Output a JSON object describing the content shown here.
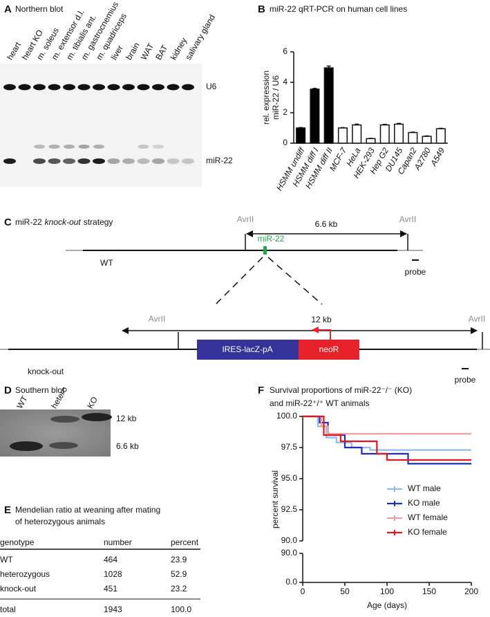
{
  "panel_labels": [
    "A",
    "B",
    "C",
    "D",
    "E",
    "F"
  ],
  "northern_blot": {
    "title": "Northern blot",
    "lanes": [
      "heart",
      "heart KO",
      "m. soleus",
      "m. extensor d.l.",
      "m. tibialis ant.",
      "m. gastrocnemius",
      "m. quadriceps",
      "liver",
      "brain",
      "WAT",
      "BAT",
      "kidney",
      "salivary gland"
    ],
    "bands": [
      "U6",
      "miR-22"
    ]
  },
  "chart_data": [
    {
      "type": "bar",
      "title": "miR-22 qRT-PCR on human cell lines",
      "y_label": [
        "rel. expression",
        "miR-22 / U6"
      ],
      "categories": [
        "HSMM undiff",
        "HSMM diff I",
        "HSMM diff II",
        "MCF-7",
        "HeLa",
        "HEK-293",
        "Hep G2",
        "DU145",
        "Capan2",
        "A2780",
        "A549"
      ],
      "values": [
        1.0,
        3.55,
        4.95,
        1.0,
        1.2,
        0.3,
        1.2,
        1.25,
        0.7,
        0.45,
        0.95
      ],
      "errors": [
        0.03,
        0.05,
        0.12,
        0.02,
        0.05,
        0.02,
        0.04,
        0.05,
        0.03,
        0.03,
        0.03
      ],
      "colors": [
        "#000000",
        "#000000",
        "#000000",
        "#ffffff",
        "#ffffff",
        "#ffffff",
        "#ffffff",
        "#ffffff",
        "#ffffff",
        "#ffffff",
        "#ffffff"
      ],
      "ylim": [
        0,
        6
      ],
      "yticks": [
        0,
        2,
        4,
        6
      ]
    },
    {
      "type": "line",
      "title": [
        "Survival proportions of miR-22⁻/⁻ (KO)",
        "and miR-22⁺/⁺ WT animals"
      ],
      "x_label": "Age (days)",
      "y_label": "percent survival",
      "xlim": [
        0,
        200
      ],
      "xticks": [
        0,
        50,
        100,
        150,
        200
      ],
      "ylim": [
        90,
        100
      ],
      "yticks": [
        {
          "value": 90,
          "label": "90.0"
        },
        {
          "value": 92.5,
          "label": "92.5"
        },
        {
          "value": 95,
          "label": "95.0"
        },
        {
          "value": 97.5,
          "label": "97.5"
        },
        {
          "value": 100,
          "label": "100.0"
        }
      ],
      "ylim_lower": [
        0,
        90
      ],
      "yticks_lower": [
        {
          "value": 0,
          "label": "0.0"
        },
        {
          "value": 90,
          "label": "90.0"
        }
      ],
      "legend": "lower right",
      "series": [
        {
          "name": "WT male",
          "color": "#8fbce6",
          "x": [
            0,
            18,
            18,
            28,
            28,
            40,
            40,
            58,
            58,
            80,
            80,
            200
          ],
          "values": [
            100,
            100,
            99.2,
            99.2,
            98.3,
            98.3,
            97.9,
            97.9,
            97.5,
            97.5,
            97.3,
            97.3
          ]
        },
        {
          "name": "KO male",
          "color": "#1a2ec0",
          "x": [
            0,
            20,
            20,
            30,
            30,
            50,
            50,
            70,
            70,
            125,
            125,
            200
          ],
          "values": [
            100,
            100,
            99.5,
            99.5,
            98.5,
            98.5,
            97.5,
            97.5,
            97.0,
            97.0,
            96.2,
            96.2
          ]
        },
        {
          "name": "WT female",
          "color": "#f29b9b",
          "x": [
            0,
            22,
            22,
            30,
            30,
            200
          ],
          "values": [
            100,
            100,
            99.2,
            99.2,
            98.6,
            98.6
          ]
        },
        {
          "name": "KO female",
          "color": "#e8141c",
          "x": [
            0,
            25,
            25,
            45,
            45,
            88,
            88,
            100,
            100,
            200
          ],
          "values": [
            100,
            100,
            98.5,
            98.5,
            98.0,
            98.0,
            97.0,
            97.0,
            96.5,
            96.5
          ]
        }
      ]
    }
  ],
  "strategy": {
    "title": [
      "miR-22",
      "knock-out",
      "strategy"
    ],
    "sites": [
      "AvrII",
      "AvrII",
      "AvrII",
      "AvrII"
    ],
    "wt_size": "6.6 kb",
    "mir": "miR-22",
    "wt": "WT",
    "probes": [
      "probe",
      "probe"
    ],
    "ko_size": "12 kb",
    "cassette": [
      "IRES-lacZ-pA",
      "neoR"
    ],
    "ko": "knock-out"
  },
  "southern_blot": {
    "title": "Southern blot",
    "lanes": [
      "WT",
      "hetero",
      "KO"
    ],
    "sizes": [
      "12 kb",
      "6.6 kb"
    ]
  },
  "table": {
    "title": [
      "Mendelian ratio at weaning after mating",
      "of heterozygous animals"
    ],
    "columns": [
      "genotype",
      "number",
      "percent"
    ],
    "rows": [
      [
        "WT",
        "464",
        "23.9"
      ],
      [
        "heterozygous",
        "1028",
        "52.9"
      ],
      [
        "knock-out",
        "451",
        "23.2"
      ],
      [
        "total",
        "1943",
        "100.0"
      ]
    ]
  }
}
